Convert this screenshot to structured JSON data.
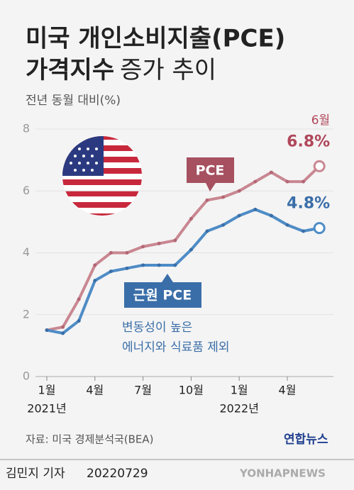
{
  "chart_data": {
    "type": "line",
    "title_lines": [
      "미국 개인소비지출(PCE)",
      "가격지수",
      "증가 추이"
    ],
    "ylabel": "전년 동월 대비(%)",
    "categories": [
      "1월",
      null,
      null,
      "4월",
      null,
      null,
      "7월",
      null,
      null,
      "10월",
      null,
      null,
      "1월",
      null,
      null,
      "4월",
      null,
      null
    ],
    "years": [
      "2021년",
      "2022년"
    ],
    "series": [
      {
        "name": "PCE",
        "color": "#c98791",
        "values": [
          1.5,
          1.6,
          2.5,
          3.6,
          4.0,
          4.0,
          4.2,
          4.3,
          4.4,
          5.1,
          5.7,
          5.8,
          6.0,
          6.3,
          6.6,
          6.3,
          6.3,
          6.8
        ],
        "value_labels": [
          null,
          null,
          null,
          null,
          null,
          null,
          null,
          null,
          null,
          null,
          null,
          null,
          null,
          null,
          null,
          null,
          null,
          "6.8%"
        ]
      },
      {
        "name": "근원 PCE",
        "color": "#4e8cc6",
        "values": [
          1.5,
          1.4,
          1.8,
          3.1,
          3.4,
          3.5,
          3.6,
          3.6,
          3.6,
          4.1,
          4.7,
          4.9,
          5.2,
          5.4,
          5.2,
          4.9,
          4.7,
          4.8
        ],
        "value_labels": [
          null,
          null,
          null,
          null,
          null,
          null,
          null,
          null,
          null,
          null,
          null,
          null,
          null,
          null,
          null,
          null,
          null,
          "4.8%"
        ]
      }
    ],
    "last_point_label": "6월",
    "annotation": [
      "변동성이 높은",
      "에너지와 식료품 제외"
    ],
    "ylim": [
      0,
      8
    ],
    "yticks": [
      0,
      2,
      4,
      6,
      8
    ],
    "grid": true,
    "source": "자료: 미국 경제분석국(BEA)",
    "brand": "연합뉴스",
    "reporter": "김민지 기자",
    "date": "20220729",
    "watermark": "YONHAPNEWS"
  }
}
